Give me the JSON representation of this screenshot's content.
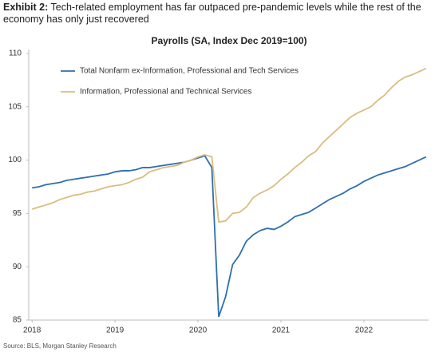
{
  "header": {
    "label": "Exhibit 2:",
    "title": "Tech-related employment has far outpaced pre-pandemic levels while the rest of the economy has only just recovered"
  },
  "source": "Source: BLS, Morgan Stanley Research",
  "chart_data": {
    "type": "line",
    "title": "Payrolls (SA, Index Dec 2019=100)",
    "x": [
      2018.0,
      2018.083,
      2018.167,
      2018.25,
      2018.333,
      2018.417,
      2018.5,
      2018.583,
      2018.667,
      2018.75,
      2018.833,
      2018.917,
      2019.0,
      2019.083,
      2019.167,
      2019.25,
      2019.333,
      2019.417,
      2019.5,
      2019.583,
      2019.667,
      2019.75,
      2019.833,
      2019.917,
      2020.0,
      2020.083,
      2020.167,
      2020.25,
      2020.333,
      2020.417,
      2020.5,
      2020.583,
      2020.667,
      2020.75,
      2020.833,
      2020.917,
      2021.0,
      2021.083,
      2021.167,
      2021.25,
      2021.333,
      2021.417,
      2021.5,
      2021.583,
      2021.667,
      2021.75,
      2021.833,
      2021.917,
      2022.0,
      2022.083,
      2022.167,
      2022.25,
      2022.333,
      2022.417,
      2022.5,
      2022.583,
      2022.667,
      2022.75
    ],
    "series": [
      {
        "name": "Total Nonfarm ex-Information, Professional and Tech Services",
        "color": "#2e6fb0",
        "values": [
          97.4,
          97.5,
          97.7,
          97.8,
          97.9,
          98.1,
          98.2,
          98.3,
          98.4,
          98.5,
          98.6,
          98.7,
          98.9,
          99.0,
          99.0,
          99.1,
          99.3,
          99.3,
          99.4,
          99.5,
          99.6,
          99.7,
          99.8,
          100.0,
          100.2,
          100.4,
          99.3,
          85.3,
          87.2,
          90.2,
          91.1,
          92.4,
          93.0,
          93.4,
          93.6,
          93.5,
          93.8,
          94.2,
          94.7,
          94.9,
          95.1,
          95.5,
          95.9,
          96.3,
          96.6,
          96.9,
          97.3,
          97.6,
          98.0,
          98.3,
          98.6,
          98.8,
          99.0,
          99.2,
          99.4,
          99.7,
          100.0,
          100.3
        ]
      },
      {
        "name": "Information, Professional and Technical Services",
        "color": "#d9bd7e",
        "values": [
          95.4,
          95.6,
          95.8,
          96.0,
          96.3,
          96.5,
          96.7,
          96.8,
          97.0,
          97.1,
          97.3,
          97.5,
          97.6,
          97.7,
          97.9,
          98.2,
          98.4,
          98.9,
          99.1,
          99.3,
          99.4,
          99.5,
          99.8,
          100.0,
          100.3,
          100.5,
          100.3,
          94.2,
          94.3,
          95.0,
          95.1,
          95.6,
          96.5,
          96.9,
          97.2,
          97.6,
          98.2,
          98.7,
          99.3,
          99.8,
          100.4,
          100.8,
          101.6,
          102.2,
          102.8,
          103.4,
          104.0,
          104.4,
          104.7,
          105.0,
          105.6,
          106.1,
          106.8,
          107.4,
          107.8,
          108.0,
          108.3,
          108.6
        ]
      }
    ],
    "xlim": [
      2017.96,
      2022.78
    ],
    "xticks": [
      2018,
      2019,
      2020,
      2021,
      2022
    ],
    "ylim": [
      85,
      110
    ],
    "yticks": [
      85,
      90,
      95,
      100,
      105,
      110
    ],
    "grid": false,
    "legend": "top-left"
  }
}
